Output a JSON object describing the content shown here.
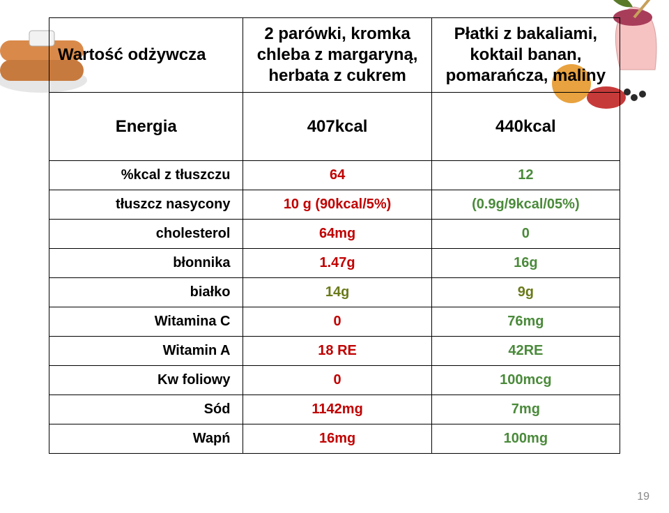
{
  "colors": {
    "header_text": "#000000",
    "red": "#c00000",
    "green": "#4a8a3a",
    "olive": "#6a7a1a",
    "border": "#000000",
    "background": "#ffffff",
    "page_num": "#888888"
  },
  "typography": {
    "header_fontsize": 24,
    "row_fontsize": 20,
    "header_weight": "bold",
    "row_weight": "bold"
  },
  "table": {
    "columns": [
      {
        "key": "label",
        "width_pct": 34,
        "align_header": "left",
        "align_body": "right"
      },
      {
        "key": "mealA",
        "width_pct": 33,
        "align_header": "center",
        "align_body": "center"
      },
      {
        "key": "mealB",
        "width_pct": 33,
        "align_header": "center",
        "align_body": "center"
      }
    ],
    "header": {
      "label": "Wartość odżywcza",
      "mealA": "2 parówki, kromka chleba z margaryną, herbata z cukrem",
      "mealB": "Płatki z bakaliami, koktail banan, pomarańcza, maliny"
    },
    "rows": [
      {
        "label": "Energia",
        "a": "407kcal",
        "b": "440kcal",
        "a_color": "black",
        "b_color": "black",
        "header_style": true
      },
      {
        "label": "%kcal z tłuszczu",
        "a": "64",
        "b": "12",
        "a_color": "red",
        "b_color": "green"
      },
      {
        "label": "tłuszcz nasycony",
        "a": "10 g (90kcal/5%)",
        "b": "(0.9g/9kcal/05%)",
        "a_color": "red",
        "b_color": "green"
      },
      {
        "label": "cholesterol",
        "a": "64mg",
        "b": "0",
        "a_color": "red",
        "b_color": "green"
      },
      {
        "label": "błonnika",
        "a": "1.47g",
        "b": "16g",
        "a_color": "red",
        "b_color": "green"
      },
      {
        "label": "białko",
        "a": "14g",
        "b": "9g",
        "a_color": "olive",
        "b_color": "olive"
      },
      {
        "label": "Witamina C",
        "a": "0",
        "b": "76mg",
        "a_color": "red",
        "b_color": "green"
      },
      {
        "label": "Witamin A",
        "a": "18 RE",
        "b": "42RE",
        "a_color": "red",
        "b_color": "green"
      },
      {
        "label": "Kw foliowy",
        "a": "0",
        "b": "100mcg",
        "a_color": "red",
        "b_color": "green"
      },
      {
        "label": "Sód",
        "a": "1142mg",
        "b": "7mg",
        "a_color": "red",
        "b_color": "green"
      },
      {
        "label": "Wapń",
        "a": "16mg",
        "b": "100mg",
        "a_color": "red",
        "b_color": "green"
      }
    ]
  },
  "page_number": "19",
  "decor": {
    "sausage_colors": [
      "#d98a4a",
      "#c77a3e",
      "#e6e6e6"
    ],
    "smoothie_colors": [
      "#a83d5a",
      "#f7c2c2",
      "#5a7a2a",
      "#2a2a2a",
      "#e8a23f"
    ]
  }
}
